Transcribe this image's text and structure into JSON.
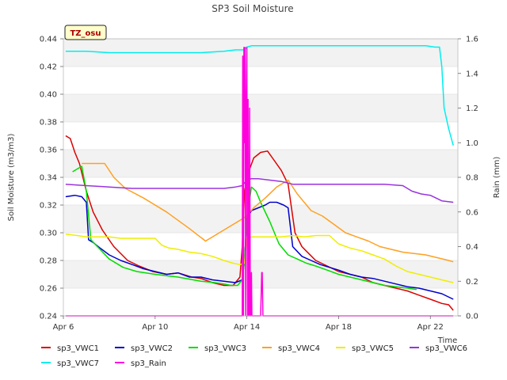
{
  "chart_data": {
    "type": "line",
    "title": "SP3 Soil Moisture",
    "ylabel": "Soil Moisture (m3/m3)",
    "y2label": "Rain (mm)",
    "xlabel": "Time",
    "site_tag": "TZ_osu",
    "ylim": [
      0.24,
      0.44
    ],
    "y2lim": [
      0.0,
      1.6
    ],
    "xlim": [
      6,
      23.2
    ],
    "y_ticks": [
      "0.24",
      "0.26",
      "0.28",
      "0.30",
      "0.32",
      "0.34",
      "0.36",
      "0.38",
      "0.40",
      "0.42",
      "0.44"
    ],
    "y2_ticks": [
      "0.0",
      "0.2",
      "0.4",
      "0.6",
      "0.8",
      "1.0",
      "1.2",
      "1.4",
      "1.6"
    ],
    "x_ticks": [
      {
        "x": 6,
        "label": "Apr 6"
      },
      {
        "x": 10,
        "label": "Apr 10"
      },
      {
        "x": 14,
        "label": "Apr 14"
      },
      {
        "x": 18,
        "label": "Apr 18"
      },
      {
        "x": 22,
        "label": "Apr 22"
      }
    ],
    "grid": true,
    "legend_position": "bottom",
    "series": [
      {
        "name": "sp3_VWC1",
        "color": "#dd0000",
        "axis": "left",
        "x": [
          6.1,
          6.3,
          6.5,
          6.7,
          7.0,
          7.3,
          7.7,
          8.2,
          8.8,
          9.3,
          9.9,
          10.5,
          11.0,
          11.6,
          12.0,
          12.5,
          13.0,
          13.4,
          13.7,
          13.8,
          13.9,
          14.1,
          14.3,
          14.6,
          14.9,
          15.2,
          15.5,
          15.8,
          16.1,
          16.4,
          16.7,
          17.0,
          17.5,
          18.0,
          18.5,
          19.0,
          19.5,
          20.0,
          20.5,
          21.0,
          21.5,
          22.0,
          22.5,
          22.8,
          23.0
        ],
        "y": [
          0.37,
          0.368,
          0.358,
          0.35,
          0.33,
          0.315,
          0.302,
          0.29,
          0.28,
          0.276,
          0.272,
          0.27,
          0.271,
          0.268,
          0.267,
          0.264,
          0.262,
          0.262,
          0.268,
          0.29,
          0.33,
          0.345,
          0.354,
          0.358,
          0.359,
          0.352,
          0.345,
          0.335,
          0.3,
          0.29,
          0.285,
          0.28,
          0.276,
          0.272,
          0.27,
          0.268,
          0.264,
          0.262,
          0.26,
          0.258,
          0.255,
          0.252,
          0.249,
          0.248,
          0.244
        ]
      },
      {
        "name": "sp3_VWC2",
        "color": "#0000cc",
        "axis": "left",
        "x": [
          6.1,
          6.5,
          6.8,
          7.0,
          7.1,
          7.3,
          7.6,
          8.0,
          8.5,
          9.0,
          9.5,
          10.0,
          10.5,
          11.0,
          11.5,
          12.0,
          12.5,
          13.0,
          13.5,
          13.8,
          13.9,
          14.0,
          14.2,
          14.5,
          14.8,
          15.0,
          15.3,
          15.6,
          15.8,
          16.0,
          16.4,
          16.8,
          17.2,
          17.6,
          18.0,
          18.5,
          19.0,
          19.5,
          20.0,
          20.5,
          21.0,
          21.5,
          22.0,
          22.5,
          23.0
        ],
        "y": [
          0.326,
          0.327,
          0.326,
          0.322,
          0.295,
          0.293,
          0.289,
          0.284,
          0.28,
          0.277,
          0.274,
          0.272,
          0.27,
          0.271,
          0.268,
          0.268,
          0.266,
          0.265,
          0.264,
          0.266,
          0.28,
          0.31,
          0.316,
          0.318,
          0.32,
          0.322,
          0.322,
          0.32,
          0.318,
          0.29,
          0.283,
          0.28,
          0.277,
          0.275,
          0.273,
          0.27,
          0.268,
          0.267,
          0.265,
          0.263,
          0.261,
          0.26,
          0.258,
          0.256,
          0.252
        ]
      },
      {
        "name": "sp3_VWC3",
        "color": "#00dd00",
        "axis": "left",
        "x": [
          6.4,
          6.8,
          7.0,
          7.2,
          7.6,
          8.0,
          8.6,
          9.2,
          10.0,
          11.0,
          12.0,
          12.6,
          13.0,
          13.3,
          13.6,
          13.8,
          13.9,
          14.0,
          14.2,
          14.4,
          14.6,
          15.0,
          15.4,
          15.8,
          16.2,
          16.6,
          17.0,
          17.5,
          18.0,
          18.5,
          19.0,
          19.5,
          20.0,
          20.5,
          21.0,
          21.4
        ],
        "y": [
          0.344,
          0.348,
          0.33,
          0.295,
          0.288,
          0.281,
          0.275,
          0.272,
          0.27,
          0.268,
          0.265,
          0.264,
          0.263,
          0.262,
          0.262,
          0.266,
          0.28,
          0.31,
          0.333,
          0.33,
          0.322,
          0.308,
          0.292,
          0.284,
          0.281,
          0.278,
          0.276,
          0.273,
          0.27,
          0.268,
          0.266,
          0.264,
          0.262,
          0.261,
          0.26,
          0.259
        ]
      },
      {
        "name": "sp3_VWC4",
        "color": "#ffa020",
        "axis": "left",
        "x": [
          6.8,
          7.3,
          7.8,
          8.2,
          8.7,
          9.5,
          10.5,
          11.5,
          12.2,
          12.8,
          13.4,
          13.9,
          14.3,
          14.8,
          15.3,
          15.8,
          16.2,
          16.8,
          17.3,
          17.8,
          18.3,
          18.8,
          19.3,
          19.8,
          20.3,
          20.8,
          21.3,
          21.8,
          22.3,
          22.8,
          23.0
        ],
        "y": [
          0.35,
          0.35,
          0.35,
          0.34,
          0.332,
          0.325,
          0.315,
          0.303,
          0.294,
          0.3,
          0.306,
          0.311,
          0.318,
          0.325,
          0.333,
          0.338,
          0.328,
          0.316,
          0.312,
          0.306,
          0.3,
          0.297,
          0.294,
          0.29,
          0.288,
          0.286,
          0.285,
          0.284,
          0.282,
          0.28,
          0.279
        ]
      },
      {
        "name": "sp3_VWC5",
        "color": "#eeee00",
        "axis": "left",
        "x": [
          6.1,
          6.6,
          7.0,
          7.5,
          8.0,
          8.5,
          9.0,
          9.5,
          10.0,
          10.3,
          10.6,
          11.0,
          11.5,
          12.0,
          12.5,
          13.0,
          13.4,
          13.7,
          13.9,
          14.0,
          14.2,
          14.6,
          15.0,
          15.5,
          16.0,
          16.5,
          17.0,
          17.3,
          17.6,
          18.0,
          18.5,
          19.0,
          19.5,
          20.0,
          20.5,
          21.0,
          21.5,
          22.0,
          22.5,
          23.0
        ],
        "y": [
          0.299,
          0.298,
          0.297,
          0.297,
          0.297,
          0.296,
          0.296,
          0.296,
          0.296,
          0.291,
          0.289,
          0.288,
          0.286,
          0.285,
          0.283,
          0.28,
          0.278,
          0.277,
          0.278,
          0.296,
          0.297,
          0.297,
          0.297,
          0.297,
          0.298,
          0.297,
          0.298,
          0.298,
          0.298,
          0.292,
          0.289,
          0.287,
          0.284,
          0.281,
          0.276,
          0.272,
          0.27,
          0.268,
          0.266,
          0.264
        ]
      },
      {
        "name": "sp3_VWC6",
        "color": "#9933dd",
        "axis": "left",
        "x": [
          6.1,
          7.0,
          8.0,
          9.0,
          10.0,
          11.0,
          12.0,
          13.0,
          13.5,
          13.8,
          14.0,
          14.2,
          14.5,
          15.0,
          15.5,
          16.0,
          17.0,
          18.0,
          19.0,
          20.0,
          20.8,
          21.2,
          21.6,
          22.0,
          22.5,
          23.0
        ],
        "y": [
          0.335,
          0.334,
          0.333,
          0.332,
          0.332,
          0.332,
          0.332,
          0.332,
          0.333,
          0.334,
          0.338,
          0.339,
          0.339,
          0.338,
          0.337,
          0.335,
          0.335,
          0.335,
          0.335,
          0.335,
          0.334,
          0.33,
          0.328,
          0.327,
          0.323,
          0.322
        ]
      },
      {
        "name": "sp3_VWC7",
        "color": "#00eeee",
        "axis": "left",
        "x": [
          6.1,
          7.0,
          8.0,
          9.0,
          10.0,
          11.0,
          12.0,
          13.0,
          13.5,
          13.9,
          14.0,
          14.2,
          14.5,
          15.0,
          16.0,
          17.0,
          18.0,
          19.0,
          20.0,
          21.0,
          21.8,
          22.2,
          22.4,
          22.5,
          22.6,
          22.8,
          23.0
        ],
        "y": [
          0.431,
          0.431,
          0.43,
          0.43,
          0.43,
          0.43,
          0.43,
          0.431,
          0.432,
          0.432,
          0.434,
          0.435,
          0.435,
          0.435,
          0.435,
          0.435,
          0.435,
          0.435,
          0.435,
          0.435,
          0.435,
          0.434,
          0.434,
          0.42,
          0.39,
          0.375,
          0.363
        ]
      },
      {
        "name": "sp3_Rain",
        "color": "#ff00dd",
        "axis": "right",
        "x": [
          6.1,
          13.8,
          13.82,
          13.85,
          13.87,
          13.9,
          13.92,
          13.95,
          13.97,
          14.0,
          14.03,
          14.05,
          14.08,
          14.1,
          14.12,
          14.15,
          14.18,
          14.2,
          14.22,
          14.25,
          14.28,
          14.3,
          14.4,
          14.6,
          14.65,
          14.67,
          14.7,
          14.75,
          23.0
        ],
        "y": [
          0.0,
          0.0,
          1.5,
          0.0,
          1.55,
          1.0,
          1.55,
          0.0,
          1.2,
          1.55,
          0.0,
          1.25,
          0.0,
          0.0,
          1.2,
          0.0,
          0.0,
          0.25,
          0.0,
          0.0,
          0.0,
          0.0,
          0.0,
          0.0,
          0.25,
          0.25,
          0.0,
          0.0,
          0.0
        ]
      }
    ]
  }
}
